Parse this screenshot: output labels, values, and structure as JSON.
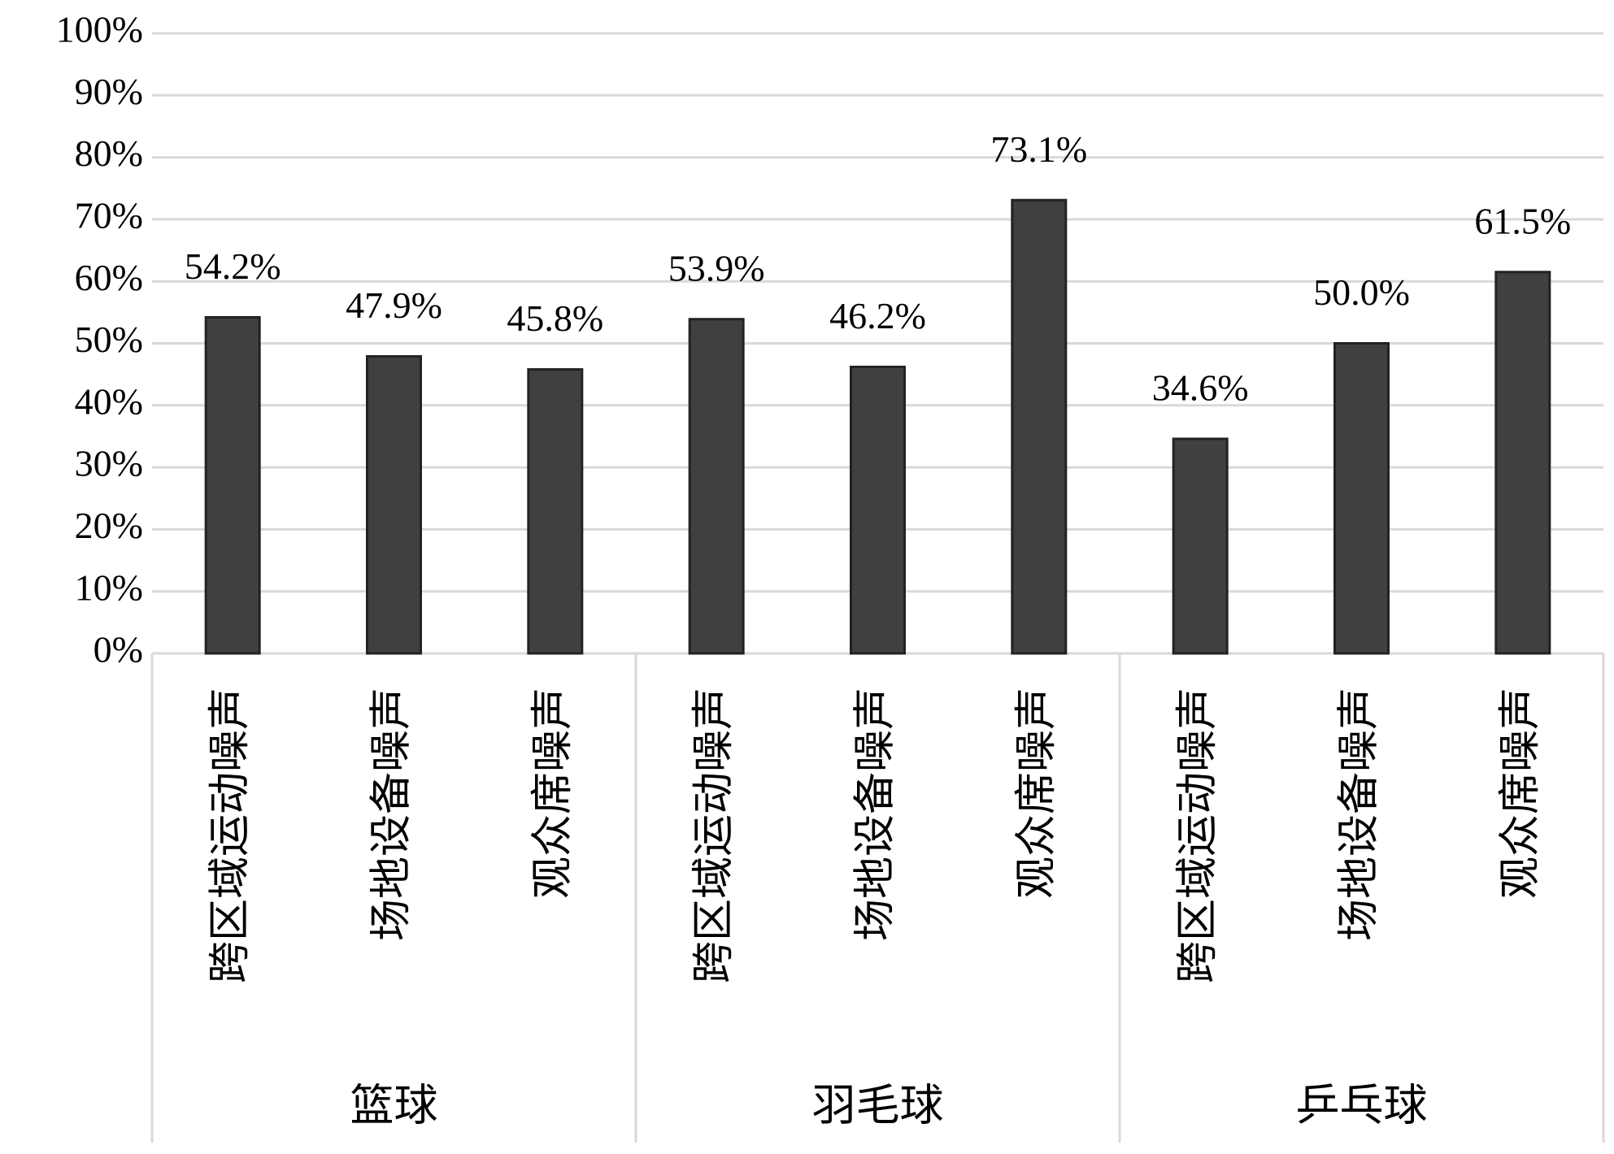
{
  "chart_data": {
    "type": "bar",
    "categories": [
      "跨区域运动噪声",
      "场地设备噪声",
      "观众席噪声",
      "跨区域运动噪声",
      "场地设备噪声",
      "观众席噪声",
      "跨区域运动噪声",
      "场地设备噪声",
      "观众席噪声"
    ],
    "groups": [
      "篮球",
      "羽毛球",
      "乒乓球"
    ],
    "values": [
      54.2,
      47.9,
      45.8,
      53.9,
      46.2,
      73.1,
      34.6,
      50.0,
      61.5
    ],
    "value_labels": [
      "54.2%",
      "47.9%",
      "45.8%",
      "53.9%",
      "46.2%",
      "73.1%",
      "34.6%",
      "50.0%",
      "61.5%"
    ],
    "color": "#404040",
    "ylim": [
      0,
      100
    ],
    "yticks": [
      {
        "value": 0,
        "label": "0%"
      },
      {
        "value": 10,
        "label": "10%"
      },
      {
        "value": 20,
        "label": "20%"
      },
      {
        "value": 30,
        "label": "30%"
      },
      {
        "value": 40,
        "label": "40%"
      },
      {
        "value": 50,
        "label": "50%"
      },
      {
        "value": 60,
        "label": "60%"
      },
      {
        "value": 70,
        "label": "70%"
      },
      {
        "value": 80,
        "label": "80%"
      },
      {
        "value": 90,
        "label": "90%"
      },
      {
        "value": 100,
        "label": "100%"
      }
    ],
    "grid": true
  }
}
